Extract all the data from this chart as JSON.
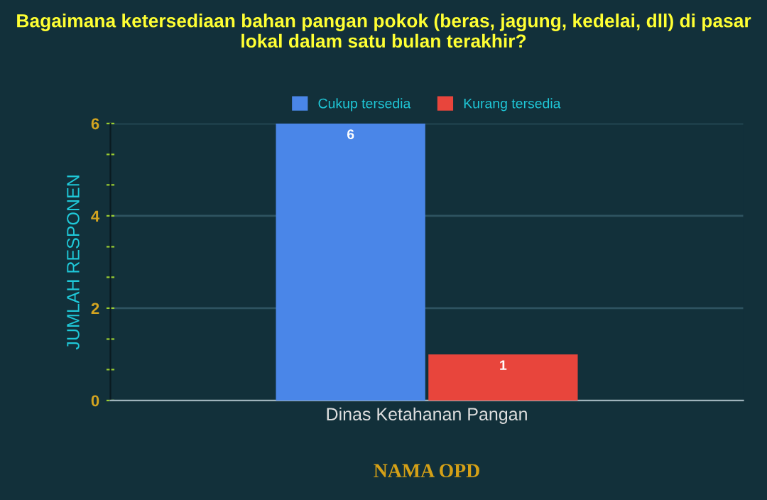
{
  "chart_data": {
    "type": "bar",
    "title": "Bagaimana ketersediaan bahan pangan pokok (beras, jagung, kedelai, dll) di pasar lokal dalam satu bulan terakhir?",
    "xlabel": "NAMA OPD",
    "ylabel": "JUMLAH RESPONEN",
    "categories": [
      "Dinas Ketahanan Pangan"
    ],
    "series": [
      {
        "name": "Cukup tersedia",
        "color": "#4a86e8",
        "values": [
          6
        ]
      },
      {
        "name": "Kurang tersedia",
        "color": "#e8453c",
        "values": [
          1
        ]
      }
    ],
    "ylim": [
      0,
      6
    ],
    "yticks": [
      0,
      {
        "value": 0.67,
        "label": null
      },
      {
        "value": 1.33,
        "label": null
      },
      2,
      {
        "value": 2.67,
        "label": null
      },
      {
        "value": 3.33,
        "label": null
      },
      4,
      {
        "value": 4.67,
        "label": null
      },
      {
        "value": 5.33,
        "label": null
      },
      6
    ],
    "grid": "y",
    "legend": "top",
    "data_labels": true
  }
}
